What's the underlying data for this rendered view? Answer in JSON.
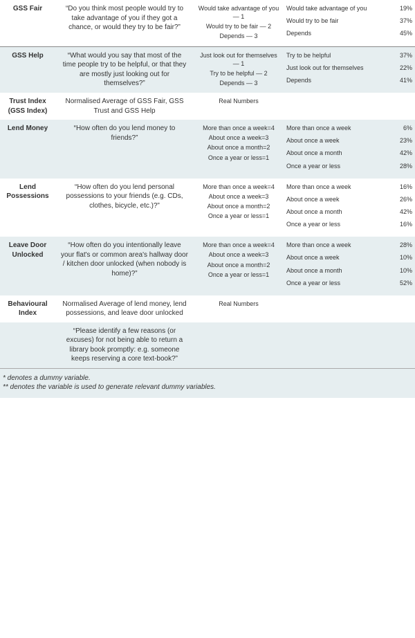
{
  "colors": {
    "row_even_bg": "#e6eef0",
    "row_odd_bg": "#ffffff",
    "border": "#888888",
    "text": "#333333"
  },
  "typography": {
    "font_family": "Verdana, Geneva, sans-serif",
    "base_fontsize": 10,
    "small_fontsize": 9
  },
  "rows": [
    {
      "name": "GSS Fair",
      "question": "“Do you think most people would try to take advantage of you if they got a chance, or would they try to be fair?”",
      "coding": [
        "Would take advantage of you — 1",
        "Would try to be fair — 2",
        "Depends — 3"
      ],
      "stats": [
        {
          "label": "Would take advantage of you",
          "pct": "19%"
        },
        {
          "label": "Would try to be fair",
          "pct": "37%"
        },
        {
          "label": "Depends",
          "pct": "45%"
        }
      ],
      "shade": "odd",
      "border_top": false
    },
    {
      "name": "GSS Help",
      "question": "“What would you say that most of the time people try to be helpful, or that they are mostly just looking out for themselves?”",
      "coding": [
        "Just look out for themselves — 1",
        "Try to be helpful — 2",
        "Depends — 3"
      ],
      "stats": [
        {
          "label": "Try to be helpful",
          "pct": "37%"
        },
        {
          "label": "Just look out for themselves",
          "pct": "22%"
        },
        {
          "label": "Depends",
          "pct": "41%"
        }
      ],
      "shade": "even",
      "border_top": true
    },
    {
      "name": "Trust Index (GSS Index)",
      "question": "Normalised Average of GSS Fair, GSS Trust and GSS Help",
      "coding": [
        "Real Numbers"
      ],
      "stats": [],
      "shade": "odd",
      "border_top": false
    },
    {
      "name": "Lend Money",
      "question": "“How often do you lend money to friends?”",
      "coding": [
        "More than once a week=4",
        "About once a week=3",
        "About once a month=2",
        "Once a year or less=1"
      ],
      "stats": [
        {
          "label": "More than once a week",
          "pct": "6%"
        },
        {
          "label": "About once a week",
          "pct": "23%"
        },
        {
          "label": "About once a month",
          "pct": "42%"
        },
        {
          "label": "Once a year or less",
          "pct": "28%"
        }
      ],
      "shade": "even",
      "border_top": false
    },
    {
      "name": "Lend Possessions",
      "question": "“How often do you lend personal possessions to your friends (e.g. CDs, clothes, bicycle, etc.)?”",
      "coding": [
        "More than once a week=4",
        "About once a week=3",
        "About once a month=2",
        "Once a year or less=1"
      ],
      "stats": [
        {
          "label": "More than once a week",
          "pct": "16%"
        },
        {
          "label": "About once a week",
          "pct": "26%"
        },
        {
          "label": "About once a month",
          "pct": "42%"
        },
        {
          "label": "Once a year or less",
          "pct": "16%"
        }
      ],
      "shade": "odd",
      "border_top": false
    },
    {
      "name": "Leave Door Unlocked",
      "question": "“How often do you intentionally leave your flat's or common area's hallway door / kitchen door unlocked (when nobody is home)?”",
      "coding": [
        "More than once a week=4",
        "About once a week=3",
        "About once a month=2",
        "Once a year or less=1"
      ],
      "stats": [
        {
          "label": "More than once a week",
          "pct": "28%"
        },
        {
          "label": "About once a week",
          "pct": "10%"
        },
        {
          "label": "About once a month",
          "pct": "10%"
        },
        {
          "label": "Once a year or less",
          "pct": "52%"
        }
      ],
      "shade": "even",
      "border_top": false
    },
    {
      "name": "Behavioural Index",
      "question": "Normalised Average of lend money, lend possessions, and leave door unlocked",
      "coding": [
        "Real Numbers"
      ],
      "stats": [],
      "shade": "odd",
      "border_top": false
    },
    {
      "name": "",
      "question": "“Please identify a few reasons (or excuses) for not being able to return a library book promptly: e.g. someone keeps reserving a core text-book?”",
      "coding": [],
      "stats": [],
      "shade": "even",
      "border_top": false
    }
  ],
  "footnotes": [
    "* denotes a dummy variable.",
    "** denotes the variable is used to generate relevant dummy variables."
  ]
}
